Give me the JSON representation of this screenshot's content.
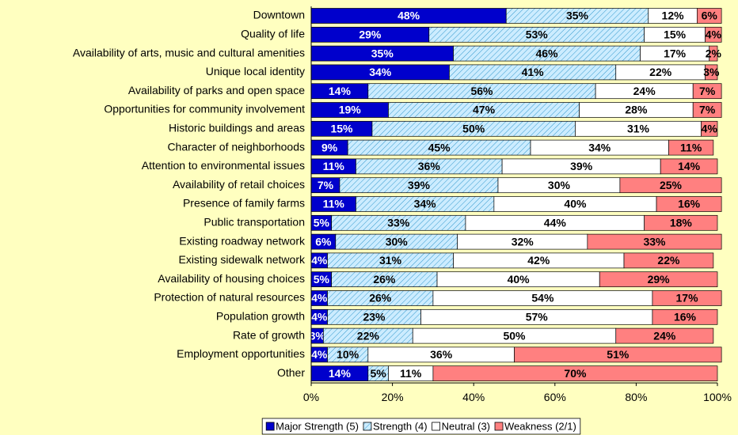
{
  "chart_data": {
    "type": "stacked_bar_horizontal",
    "categories": [
      "Downtown",
      "Quality of life",
      "Availability of arts, music and cultural amenities",
      "Unique local identity",
      "Availability of parks and open space",
      "Opportunities for community involvement",
      "Historic buildings and areas",
      "Character of neighborhoods",
      "Attention to environmental issues",
      "Availability of retail choices",
      "Presence of family farms",
      "Public transportation",
      "Existing roadway network",
      "Existing sidewalk network",
      "Availability of housing choices",
      "Protection of natural resources",
      "Population growth",
      "Rate of growth",
      "Employment opportunities",
      "Other"
    ],
    "series": [
      {
        "name": "Major Strength (5)",
        "color": "#0000CC",
        "values": [
          48,
          29,
          35,
          34,
          14,
          19,
          15,
          9,
          11,
          7,
          11,
          5,
          6,
          4,
          5,
          4,
          4,
          3,
          4,
          14
        ],
        "value_labels": [
          "48%",
          "29%",
          "35%",
          "34%",
          "14%",
          "19%",
          "15%",
          "9%",
          "11%",
          "7%",
          "11%",
          "5%",
          "6%",
          "4%",
          "5%",
          "4%",
          "4%",
          "3%",
          "4%",
          "14%"
        ]
      },
      {
        "name": "Strength (4)",
        "color": "#CCECFF",
        "pattern": "hatch",
        "values": [
          35,
          53,
          46,
          41,
          56,
          47,
          50,
          45,
          36,
          39,
          34,
          33,
          30,
          31,
          26,
          26,
          23,
          22,
          10,
          5
        ],
        "value_labels": [
          "35%",
          "53%",
          "46%",
          "41%",
          "56%",
          "47%",
          "50%",
          "45%",
          "36%",
          "39%",
          "34%",
          "33%",
          "30%",
          "31%",
          "26%",
          "26%",
          "23%",
          "22%",
          "10%",
          "5%"
        ]
      },
      {
        "name": "Neutral (3)",
        "color": "#FFFFFF",
        "values": [
          12,
          15,
          17,
          22,
          24,
          28,
          31,
          34,
          39,
          30,
          40,
          44,
          32,
          42,
          40,
          54,
          57,
          50,
          36,
          11
        ],
        "value_labels": [
          "12%",
          "15%",
          "17%",
          "22%",
          "24%",
          "28%",
          "31%",
          "34%",
          "39%",
          "30%",
          "40%",
          "44%",
          "32%",
          "42%",
          "40%",
          "54%",
          "57%",
          "50%",
          "36%",
          "11%"
        ]
      },
      {
        "name": "Weakness (2/1)",
        "color": "#FF8080",
        "values": [
          6,
          4,
          2,
          3,
          7,
          7,
          4,
          11,
          14,
          25,
          16,
          18,
          33,
          22,
          29,
          17,
          16,
          24,
          51,
          70
        ],
        "value_labels": [
          "6%",
          "4%",
          "2%",
          "3%",
          "7%",
          "7%",
          "4%",
          "11%",
          "14%",
          "25%",
          "16%",
          "18%",
          "33%",
          "22%",
          "29%",
          "17%",
          "16%",
          "24%",
          "51%",
          "70%"
        ]
      }
    ],
    "xlim": [
      0,
      100
    ],
    "xticks": [
      {
        "value": 0,
        "label": "0%"
      },
      {
        "value": 20,
        "label": "20%"
      },
      {
        "value": 40,
        "label": "40%"
      },
      {
        "value": 60,
        "label": "60%"
      },
      {
        "value": 80,
        "label": "80%"
      },
      {
        "value": 100,
        "label": "100%"
      }
    ],
    "legend": "bottom"
  }
}
